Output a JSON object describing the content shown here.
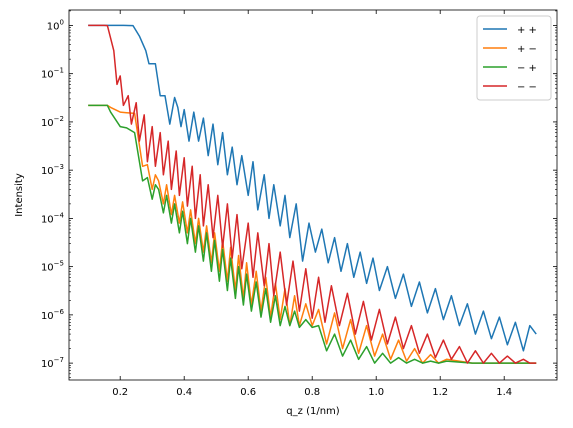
{
  "chart_data": {
    "type": "line",
    "title": "",
    "xlabel": "q_z (1/nm)",
    "ylabel": "Intensity",
    "xlim": [
      0.04,
      1.565
    ],
    "ylim_log10": [
      -7.35,
      0.32
    ],
    "y_scale": "log",
    "grid": false,
    "legend_position": "top-right",
    "x_ticks": [
      0.2,
      0.4,
      0.6,
      0.8,
      1.0,
      1.2,
      1.4
    ],
    "x_tick_labels": [
      "0.2",
      "0.4",
      "0.6",
      "0.8",
      "1.0",
      "1.2",
      "1.4"
    ],
    "y_tick_exponents": [
      0,
      -1,
      -2,
      -3,
      -4,
      -5,
      -6,
      -7
    ],
    "y_tick_base": "10",
    "series": [
      {
        "name": "++",
        "color": "#1f77b4",
        "x": [
          0.1,
          0.21,
          0.24,
          0.26,
          0.28,
          0.29,
          0.31,
          0.325,
          0.34,
          0.355,
          0.37,
          0.38,
          0.39,
          0.4,
          0.415,
          0.43,
          0.445,
          0.46,
          0.475,
          0.49,
          0.505,
          0.52,
          0.535,
          0.55,
          0.565,
          0.58,
          0.6,
          0.615,
          0.63,
          0.65,
          0.665,
          0.68,
          0.7,
          0.715,
          0.73,
          0.75,
          0.77,
          0.79,
          0.81,
          0.83,
          0.85,
          0.87,
          0.89,
          0.91,
          0.93,
          0.95,
          0.97,
          0.99,
          1.01,
          1.035,
          1.06,
          1.085,
          1.11,
          1.135,
          1.16,
          1.185,
          1.21,
          1.235,
          1.26,
          1.285,
          1.31,
          1.335,
          1.36,
          1.385,
          1.41,
          1.435,
          1.46,
          1.48,
          1.5
        ],
        "y": [
          1.0,
          1.0,
          0.99,
          0.6,
          0.3,
          0.16,
          0.16,
          0.035,
          0.035,
          0.009,
          0.032,
          0.02,
          0.008,
          0.018,
          0.004,
          0.016,
          0.004,
          0.012,
          0.002,
          0.009,
          0.0013,
          0.006,
          0.0008,
          0.003,
          0.0005,
          0.002,
          0.0003,
          0.0015,
          0.00015,
          0.0008,
          0.0001,
          0.0005,
          7e-05,
          0.0003,
          4e-05,
          0.0002,
          1.3e-05,
          8e-05,
          2e-05,
          6e-05,
          1.2e-05,
          4e-05,
          8e-06,
          3e-05,
          6e-06,
          2e-05,
          4.5e-06,
          1.5e-05,
          3.2e-06,
          1e-05,
          2.2e-06,
          7e-06,
          1.5e-06,
          4.8e-06,
          1.1e-06,
          3.5e-06,
          8e-07,
          2.5e-06,
          6e-07,
          1.7e-06,
          4e-07,
          1.2e-06,
          3.2e-07,
          9e-07,
          2.4e-07,
          7e-07,
          1.8e-07,
          6e-07,
          4e-07
        ]
      },
      {
        "name": "+−",
        "color": "#ff7f0e",
        "x": [
          0.1,
          0.16,
          0.17,
          0.2,
          0.22,
          0.245,
          0.27,
          0.285,
          0.3,
          0.31,
          0.32,
          0.335,
          0.345,
          0.36,
          0.37,
          0.385,
          0.395,
          0.41,
          0.42,
          0.435,
          0.445,
          0.46,
          0.47,
          0.485,
          0.495,
          0.51,
          0.52,
          0.535,
          0.545,
          0.56,
          0.57,
          0.585,
          0.595,
          0.61,
          0.625,
          0.64,
          0.655,
          0.67,
          0.685,
          0.7,
          0.715,
          0.73,
          0.745,
          0.76,
          0.78,
          0.8,
          0.82,
          0.845,
          0.87,
          0.895,
          0.92,
          0.945,
          0.97,
          0.995,
          1.02,
          1.045,
          1.07,
          1.095,
          1.12,
          1.145,
          1.17,
          1.195,
          1.22,
          1.3,
          1.4,
          1.5
        ],
        "y": [
          0.022,
          0.022,
          0.02,
          0.016,
          0.0155,
          0.015,
          0.0012,
          0.0013,
          0.0004,
          0.0008,
          0.0006,
          0.0002,
          0.0005,
          0.00012,
          0.0003,
          8e-05,
          0.00022,
          5e-05,
          0.00015,
          3e-05,
          0.0001,
          2e-05,
          7e-05,
          1.2e-05,
          5e-05,
          8e-06,
          3.5e-05,
          5e-06,
          2.5e-05,
          3.2e-06,
          1.7e-05,
          2.2e-06,
          1.2e-05,
          1.6e-06,
          8e-06,
          1.2e-06,
          6e-06,
          9e-07,
          4.5e-06,
          8e-07,
          3.5e-06,
          6e-07,
          2.5e-06,
          6e-07,
          1.7e-06,
          6e-07,
          1.3e-06,
          2.5e-07,
          1.1e-06,
          2e-07,
          8e-07,
          1.6e-07,
          6e-07,
          1.4e-07,
          4e-07,
          1.2e-07,
          3e-07,
          1.1e-07,
          2e-07,
          1e-07,
          1.5e-07,
          1e-07,
          1.2e-07,
          1e-07,
          1e-07,
          1e-07
        ]
      },
      {
        "name": "−+",
        "color": "#2ca02c",
        "x": [
          0.1,
          0.16,
          0.17,
          0.2,
          0.22,
          0.245,
          0.27,
          0.285,
          0.3,
          0.31,
          0.32,
          0.335,
          0.345,
          0.36,
          0.37,
          0.385,
          0.395,
          0.41,
          0.42,
          0.435,
          0.445,
          0.46,
          0.47,
          0.485,
          0.495,
          0.51,
          0.52,
          0.535,
          0.545,
          0.56,
          0.57,
          0.585,
          0.595,
          0.61,
          0.625,
          0.64,
          0.655,
          0.67,
          0.685,
          0.7,
          0.715,
          0.73,
          0.745,
          0.76,
          0.78,
          0.8,
          0.82,
          0.845,
          0.87,
          0.895,
          0.92,
          0.945,
          0.97,
          0.995,
          1.02,
          1.045,
          1.07,
          1.095,
          1.12,
          1.145,
          1.17,
          1.195,
          1.22,
          1.3,
          1.4,
          1.5
        ],
        "y": [
          0.022,
          0.022,
          0.016,
          0.008,
          0.0075,
          0.006,
          0.0006,
          0.0007,
          0.00025,
          0.0005,
          0.0004,
          0.00013,
          0.0003,
          8e-05,
          0.0002,
          5e-05,
          0.00014,
          3e-05,
          0.0001,
          2e-05,
          7e-05,
          1.3e-05,
          5e-05,
          8e-06,
          3.5e-05,
          5e-06,
          2.3e-05,
          3.2e-06,
          1.5e-05,
          2.2e-06,
          1e-05,
          1.6e-06,
          7e-06,
          1.2e-06,
          4.8e-06,
          9e-07,
          3.5e-06,
          7e-07,
          2.5e-06,
          6e-07,
          1.5e-06,
          6e-07,
          1.2e-06,
          5.5e-07,
          8e-07,
          5.5e-07,
          6e-07,
          1.8e-07,
          4e-07,
          1.4e-07,
          3e-07,
          1.2e-07,
          2.2e-07,
          1e-07,
          1.6e-07,
          1e-07,
          1.3e-07,
          1e-07,
          1.2e-07,
          1e-07,
          1.1e-07,
          1e-07,
          1.1e-07,
          1e-07,
          1e-07,
          1e-07
        ]
      },
      {
        "name": "−−",
        "color": "#d62728",
        "x": [
          0.1,
          0.15,
          0.16,
          0.18,
          0.19,
          0.2,
          0.21,
          0.225,
          0.235,
          0.25,
          0.26,
          0.275,
          0.285,
          0.3,
          0.31,
          0.325,
          0.335,
          0.35,
          0.36,
          0.375,
          0.385,
          0.4,
          0.41,
          0.425,
          0.435,
          0.45,
          0.46,
          0.475,
          0.49,
          0.505,
          0.52,
          0.535,
          0.55,
          0.565,
          0.58,
          0.6,
          0.615,
          0.63,
          0.65,
          0.665,
          0.68,
          0.7,
          0.72,
          0.74,
          0.76,
          0.78,
          0.8,
          0.82,
          0.84,
          0.86,
          0.885,
          0.91,
          0.935,
          0.96,
          0.985,
          1.01,
          1.035,
          1.06,
          1.085,
          1.11,
          1.135,
          1.16,
          1.185,
          1.21,
          1.235,
          1.26,
          1.285,
          1.31,
          1.335,
          1.36,
          1.385,
          1.41,
          1.435,
          1.46,
          1.48,
          1.5
        ],
        "y": [
          1.0,
          1.0,
          0.99,
          0.3,
          0.06,
          0.09,
          0.022,
          0.035,
          0.009,
          0.025,
          0.004,
          0.014,
          0.0015,
          0.008,
          0.0012,
          0.006,
          0.0008,
          0.004,
          0.0004,
          0.0025,
          0.0003,
          0.0018,
          0.00018,
          0.0012,
          0.0001,
          0.0008,
          7e-05,
          0.0005,
          4e-05,
          0.0003,
          2.5e-05,
          0.0002,
          1.5e-05,
          0.00012,
          9e-06,
          8e-05,
          6e-06,
          5e-05,
          4e-06,
          3e-05,
          2.5e-06,
          2e-05,
          1.6e-06,
          1.3e-05,
          1.2e-06,
          9e-06,
          8.5e-07,
          6e-06,
          7e-07,
          4e-06,
          6e-07,
          2.8e-06,
          4e-07,
          1.9e-06,
          3e-07,
          1.3e-06,
          2.5e-07,
          9e-07,
          2e-07,
          6e-07,
          1.6e-07,
          4e-07,
          1.3e-07,
          3e-07,
          1.2e-07,
          2.2e-07,
          1e-07,
          1.8e-07,
          1e-07,
          1.6e-07,
          1e-07,
          1.4e-07,
          1e-07,
          1.2e-07,
          1e-07,
          1e-07
        ]
      }
    ]
  }
}
